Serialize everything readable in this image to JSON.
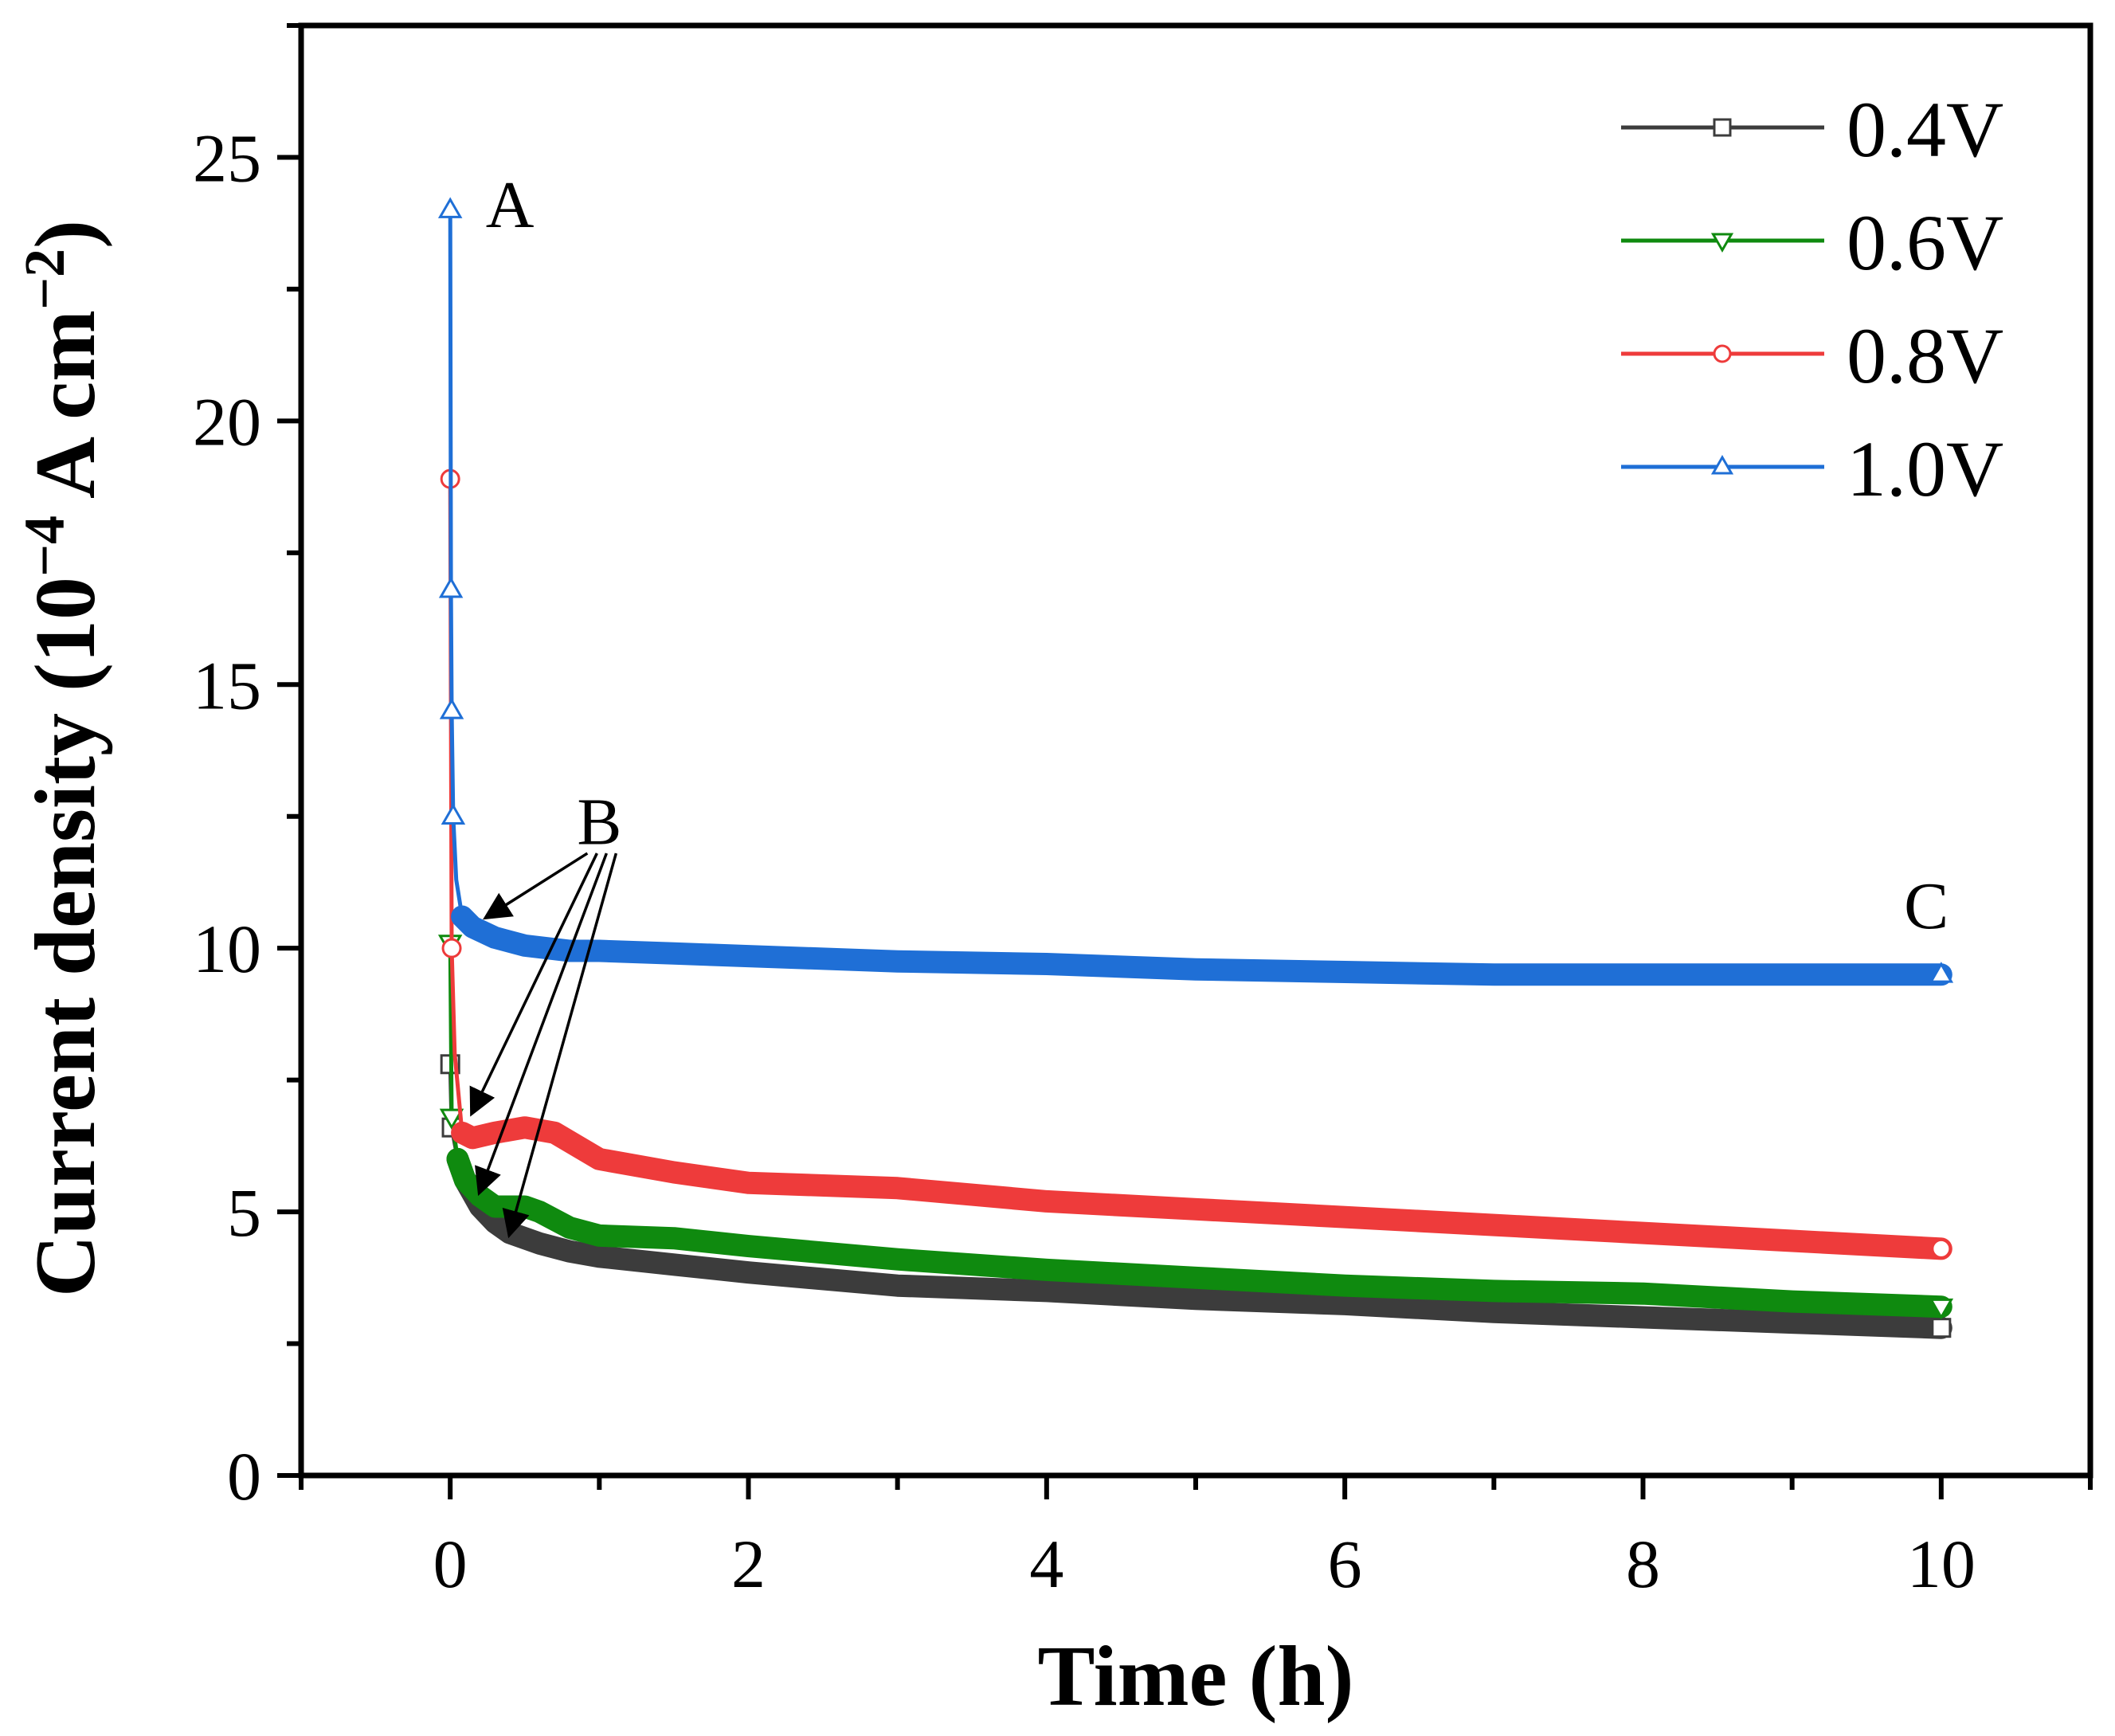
{
  "chart_data": {
    "type": "line",
    "title": "",
    "xlabel": "Time (h)",
    "ylabel_main": "Current density (10",
    "ylabel_exp1": "−4",
    "ylabel_mid": " A cm",
    "ylabel_exp2": "−2",
    "ylabel_end": ")",
    "xlim": [
      -1,
      11
    ],
    "ylim": [
      0,
      27.5
    ],
    "xticks": [
      0,
      2,
      4,
      6,
      8,
      10
    ],
    "xtick_labels": [
      "0",
      "2",
      "4",
      "6",
      "8",
      "10"
    ],
    "yticks": [
      0,
      5,
      10,
      15,
      20,
      25
    ],
    "ytick_labels": [
      "0",
      "5",
      "10",
      "15",
      "20",
      "25"
    ],
    "legend_position": "top-right",
    "series": [
      {
        "name": "0.4V",
        "color": "#3c3c3c",
        "marker": "square",
        "x": [
          0,
          0.01,
          0.05,
          0.1,
          0.2,
          0.3,
          0.4,
          0.6,
          0.8,
          1,
          1.5,
          2,
          3,
          4,
          5,
          6,
          7,
          8,
          9,
          10
        ],
        "values": [
          7.8,
          6.6,
          6.0,
          5.6,
          5.1,
          4.8,
          4.6,
          4.4,
          4.25,
          4.15,
          4.0,
          3.85,
          3.6,
          3.5,
          3.35,
          3.25,
          3.1,
          3.0,
          2.9,
          2.8
        ]
      },
      {
        "name": "0.6V",
        "color": "#0f8a0f",
        "marker": "triangle-down",
        "x": [
          0,
          0.01,
          0.05,
          0.1,
          0.2,
          0.3,
          0.5,
          0.6,
          0.8,
          1,
          1.5,
          2,
          3,
          4,
          5,
          6,
          7,
          8,
          9,
          10
        ],
        "values": [
          10.1,
          6.8,
          6.0,
          5.6,
          5.3,
          5.1,
          5.1,
          5.0,
          4.7,
          4.55,
          4.5,
          4.35,
          4.1,
          3.9,
          3.75,
          3.6,
          3.5,
          3.45,
          3.3,
          3.2
        ]
      },
      {
        "name": "0.8V",
        "color": "#ee3b3b",
        "marker": "circle",
        "x": [
          0,
          0.01,
          0.03,
          0.08,
          0.15,
          0.3,
          0.5,
          0.7,
          1,
          1.5,
          2,
          3,
          4,
          5,
          6,
          7,
          8,
          9,
          10
        ],
        "values": [
          18.9,
          10.0,
          8.0,
          6.5,
          6.4,
          6.5,
          6.6,
          6.5,
          6.0,
          5.75,
          5.55,
          5.45,
          5.2,
          5.05,
          4.9,
          4.75,
          4.6,
          4.45,
          4.3
        ]
      },
      {
        "name": "1.0V",
        "color": "#1f6fd6",
        "marker": "triangle-up",
        "x": [
          0,
          0.005,
          0.01,
          0.02,
          0.04,
          0.08,
          0.15,
          0.3,
          0.5,
          0.8,
          1,
          1.5,
          2,
          3,
          4,
          5,
          6,
          7,
          8,
          9,
          10
        ],
        "values": [
          24.0,
          16.8,
          14.5,
          12.5,
          11.3,
          10.6,
          10.4,
          10.2,
          10.05,
          9.95,
          9.95,
          9.9,
          9.85,
          9.75,
          9.7,
          9.6,
          9.55,
          9.5,
          9.5,
          9.5,
          9.5
        ]
      }
    ],
    "annotations": [
      {
        "text": "A",
        "x": 0.4,
        "y": 24.1
      },
      {
        "text": "B",
        "x": 1.0,
        "y": 12.4
      },
      {
        "text": "C",
        "x": 9.9,
        "y": 10.8
      }
    ]
  }
}
